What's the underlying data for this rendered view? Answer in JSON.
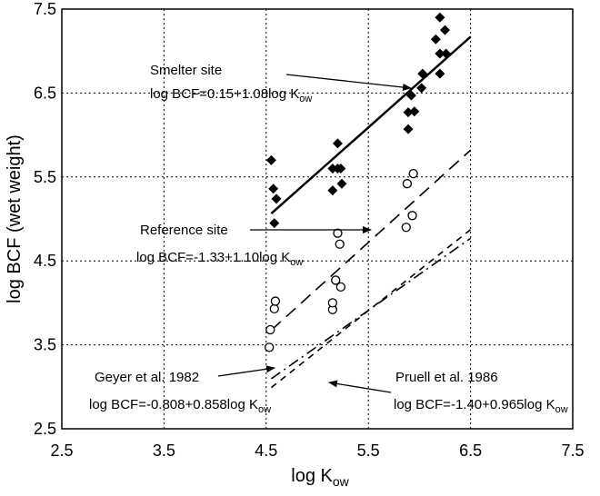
{
  "chart_data": {
    "type": "scatter",
    "title": "",
    "xlabel": {
      "main": "log K",
      "sub": "ow"
    },
    "ylabel": "log BCF (wet weight)",
    "xlim": [
      2.5,
      7.5
    ],
    "ylim": [
      2.5,
      7.5
    ],
    "xticks": [
      "2.5",
      "3.5",
      "4.5",
      "5.5",
      "6.5",
      "7.5"
    ],
    "yticks": [
      "2.5",
      "3.5",
      "4.5",
      "5.5",
      "6.5",
      "7.5"
    ],
    "grid": "dotted",
    "legend": "none",
    "series": [
      {
        "marker": "filled-diamond",
        "points": [
          [
            4.55,
            5.7
          ],
          [
            4.57,
            5.36
          ],
          [
            4.6,
            5.24
          ],
          [
            4.58,
            4.95
          ],
          [
            5.15,
            5.34
          ],
          [
            5.15,
            5.6
          ],
          [
            5.2,
            5.9
          ],
          [
            5.2,
            5.6
          ],
          [
            5.23,
            5.6
          ],
          [
            5.24,
            5.42
          ],
          [
            5.89,
            6.07
          ],
          [
            5.89,
            6.27
          ],
          [
            5.92,
            6.47
          ],
          [
            5.95,
            6.28
          ],
          [
            6.02,
            6.56
          ],
          [
            6.03,
            6.73
          ],
          [
            6.16,
            7.14
          ],
          [
            6.2,
            7.4
          ],
          [
            6.2,
            6.97
          ],
          [
            6.2,
            6.73
          ],
          [
            6.25,
            7.25
          ],
          [
            6.26,
            6.97
          ]
        ],
        "fit": {
          "intercept": 0.15,
          "slope": 1.08,
          "x_range": [
            4.55,
            6.5
          ],
          "style": "solid"
        }
      },
      {
        "marker": "open-circle",
        "points": [
          [
            4.53,
            3.47
          ],
          [
            4.54,
            3.68
          ],
          [
            4.58,
            3.93
          ],
          [
            4.59,
            4.02
          ],
          [
            5.15,
            3.92
          ],
          [
            5.15,
            4.0
          ],
          [
            5.18,
            4.27
          ],
          [
            5.2,
            4.83
          ],
          [
            5.22,
            4.7
          ],
          [
            5.23,
            4.19
          ],
          [
            5.87,
            4.9
          ],
          [
            5.88,
            5.42
          ],
          [
            5.93,
            5.04
          ],
          [
            5.94,
            5.54
          ]
        ],
        "fit": {
          "intercept": -1.33,
          "slope": 1.1,
          "x_range": [
            4.55,
            6.5
          ],
          "style": "long-dash"
        }
      },
      {
        "marker": "none",
        "points": [],
        "fit": {
          "intercept": -0.808,
          "slope": 0.858,
          "x_range": [
            4.55,
            6.5
          ],
          "style": "dash-dot"
        }
      },
      {
        "marker": "none",
        "points": [],
        "fit": {
          "intercept": -1.4,
          "slope": 0.965,
          "x_range": [
            4.55,
            6.5
          ],
          "style": "short-dash"
        }
      }
    ],
    "annotations": [
      {
        "line1": "Smelter site",
        "eq_prefix": "log BCF=0.15+1.08log K",
        "sub": "ow"
      },
      {
        "line1": "Reference site",
        "eq_prefix": "log BCF=-1.33+1.10log K",
        "sub": "ow"
      },
      {
        "line1": "Geyer et al. 1982",
        "eq_prefix": "log BCF=-0.808+0.858log K",
        "sub": "ow"
      },
      {
        "line1": "Pruell et al. 1986",
        "eq_prefix": "log BCF=-1.40+0.965log K",
        "sub": "ow"
      }
    ]
  }
}
